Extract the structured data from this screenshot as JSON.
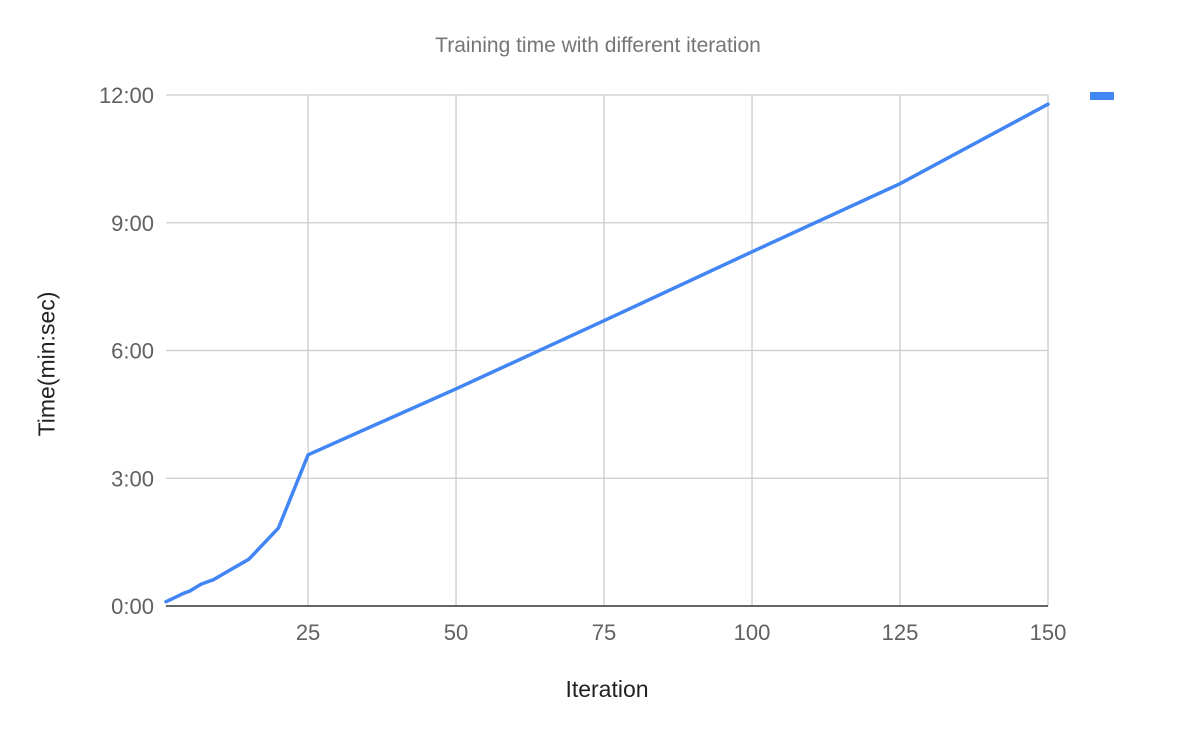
{
  "chart_data": {
    "type": "line",
    "title": "Training time with different iteration",
    "xlabel": "Iteration",
    "ylabel": "Time(min:sec)",
    "xlim": [
      1,
      150
    ],
    "xticks": [
      25,
      50,
      75,
      100,
      125,
      150
    ],
    "xtick_labels": [
      "25",
      "50",
      "75",
      "100",
      "125",
      "150"
    ],
    "ylim_seconds": [
      0,
      720
    ],
    "yticks_seconds": [
      0,
      180,
      360,
      540,
      720
    ],
    "ytick_labels": [
      "0:00",
      "3:00",
      "6:00",
      "9:00",
      "12:00"
    ],
    "grid": true,
    "legend_position": "right",
    "series": [
      {
        "color": "#4285f4",
        "x": [
          1,
          2,
          3,
          4,
          5,
          6,
          7,
          8,
          9,
          10,
          15,
          20,
          25,
          50,
          75,
          100,
          125,
          150
        ],
        "y_seconds": [
          6,
          10,
          14,
          18,
          21,
          26,
          31,
          34,
          37,
          42,
          66,
          110,
          213,
          306,
          402,
          499,
          595,
          707
        ]
      }
    ]
  }
}
